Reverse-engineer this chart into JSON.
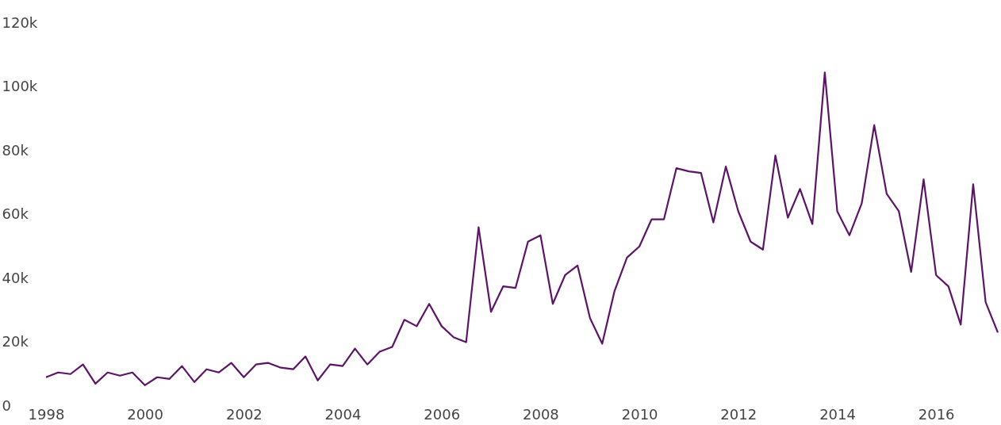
{
  "chart_data": {
    "type": "line",
    "x": [
      "1998-01",
      "1998-04",
      "1998-07",
      "1998-10",
      "1999-01",
      "1999-04",
      "1999-07",
      "1999-10",
      "2000-01",
      "2000-04",
      "2000-07",
      "2000-10",
      "2001-01",
      "2001-04",
      "2001-07",
      "2001-10",
      "2002-01",
      "2002-04",
      "2002-07",
      "2002-10",
      "2003-01",
      "2003-04",
      "2003-07",
      "2003-10",
      "2004-01",
      "2004-04",
      "2004-07",
      "2004-10",
      "2005-01",
      "2005-04",
      "2005-07",
      "2005-10",
      "2006-01",
      "2006-04",
      "2006-07",
      "2006-10",
      "2007-01",
      "2007-04",
      "2007-07",
      "2007-10",
      "2008-01",
      "2008-04",
      "2008-07",
      "2008-10",
      "2009-01",
      "2009-04",
      "2009-07",
      "2009-10",
      "2010-01",
      "2010-04",
      "2010-07",
      "2010-10",
      "2011-01",
      "2011-04",
      "2011-07",
      "2011-10",
      "2012-01",
      "2012-04",
      "2012-07",
      "2012-10",
      "2013-01",
      "2013-04",
      "2013-07",
      "2013-10",
      "2014-01",
      "2014-04",
      "2014-07",
      "2014-10",
      "2015-01",
      "2015-04",
      "2015-07",
      "2015-10",
      "2016-01",
      "2016-04",
      "2016-07",
      "2016-10",
      "2017-01",
      "2017-04"
    ],
    "series": [
      {
        "color": "#5b1466",
        "values": [
          9000,
          10500,
          10000,
          13000,
          7000,
          10500,
          9500,
          10500,
          6500,
          9000,
          8500,
          12500,
          7500,
          11500,
          10500,
          13500,
          9000,
          13000,
          13500,
          12000,
          11500,
          15500,
          8000,
          13000,
          12500,
          18000,
          13000,
          17000,
          18500,
          27000,
          25000,
          32000,
          25000,
          21500,
          20000,
          56000,
          29500,
          37500,
          37000,
          51500,
          53500,
          32000,
          41000,
          44000,
          27500,
          19500,
          36000,
          46500,
          50000,
          58500,
          58500,
          74500,
          73500,
          73000,
          57500,
          75000,
          61000,
          51500,
          49000,
          78500,
          59000,
          68000,
          57000,
          104500,
          61000,
          53500,
          63500,
          88000,
          66500,
          61000,
          42000,
          71000,
          41000,
          37500,
          25500,
          69500,
          32500,
          23000
        ]
      }
    ],
    "xlim": [
      "1998-01",
      "2017-04"
    ],
    "xticks": [
      "1998",
      "2000",
      "2002",
      "2004",
      "2006",
      "2008",
      "2010",
      "2012",
      "2014",
      "2016"
    ],
    "ylim": [
      0,
      120000
    ],
    "yticks": [
      0,
      {
        "value": 20000,
        "label": "20k"
      },
      {
        "value": 40000,
        "label": "40k"
      },
      {
        "value": 60000,
        "label": "60k"
      },
      {
        "value": 80000,
        "label": "80k"
      },
      {
        "value": 100000,
        "label": "100k"
      },
      {
        "value": 120000,
        "label": "120k"
      }
    ],
    "grid": false,
    "marker": "none",
    "line_style": "solid"
  }
}
